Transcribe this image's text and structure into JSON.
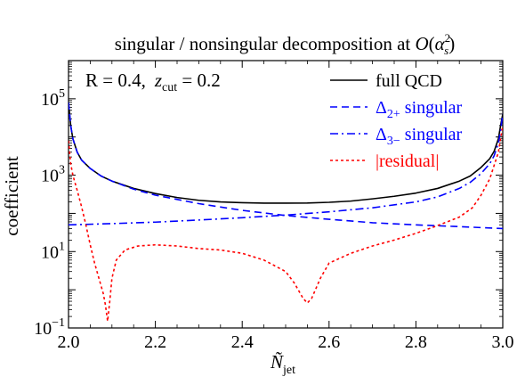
{
  "chart_data": {
    "type": "line",
    "title": {
      "pre": "singular / nonsingular decomposition at ",
      "O": "O",
      "alpha": "α",
      "sup": "2",
      "sub": "s"
    },
    "xlabel": {
      "main": "Ñ",
      "sub": "jet"
    },
    "ylabel": "coefficient",
    "annotation": {
      "r_text": "R = 0.4,",
      "z": "z",
      "z_sub": "cut",
      "z_val": " = 0.2"
    },
    "xlim": [
      2.0,
      3.0
    ],
    "ylim": [
      0.1,
      1000000
    ],
    "yscale": "log",
    "x_ticks": [
      "2.0",
      "2.2",
      "2.4",
      "2.6",
      "2.8",
      "3.0"
    ],
    "y_ticks": [
      {
        "base": "10",
        "exp": "−1"
      },
      {
        "base": "10",
        "exp": "1"
      },
      {
        "base": "10",
        "exp": "3"
      },
      {
        "base": "10",
        "exp": "5"
      }
    ],
    "legend": {
      "placement": "top-right",
      "entries": [
        {
          "label": "full QCD",
          "color": "#000000",
          "dash": "solid"
        },
        {
          "label_pre": "Δ",
          "label_sub": "2+",
          "label_post": " singular",
          "color": "#0000ff",
          "dash": "dashed"
        },
        {
          "label_pre": "Δ",
          "label_sub": "3−",
          "label_post": " singular",
          "color": "#0000ff",
          "dash": "dashdot"
        },
        {
          "label": "|residual|",
          "color": "#ff0000",
          "dash": "dotted"
        }
      ]
    },
    "series": [
      {
        "name": "full QCD",
        "x": [
          2.0,
          2.005,
          2.01,
          2.02,
          2.03,
          2.05,
          2.075,
          2.1,
          2.15,
          2.2,
          2.25,
          2.3,
          2.35,
          2.4,
          2.45,
          2.5,
          2.55,
          2.6,
          2.65,
          2.7,
          2.75,
          2.8,
          2.85,
          2.9,
          2.925,
          2.95,
          2.97,
          2.98,
          2.99,
          2.995,
          3.0
        ],
        "y": [
          80000,
          20000,
          9000,
          4000,
          2500,
          1500,
          950,
          700,
          450,
          330,
          260,
          220,
          200,
          190,
          185,
          185,
          187,
          195,
          210,
          240,
          280,
          340,
          450,
          700,
          950,
          1600,
          2700,
          4200,
          9000,
          20000,
          40000
        ]
      },
      {
        "name": "Δ2+ singular",
        "x": [
          2.0,
          2.005,
          2.01,
          2.02,
          2.03,
          2.05,
          2.075,
          2.1,
          2.15,
          2.2,
          2.3,
          2.4,
          2.5,
          2.6,
          2.7,
          2.8,
          2.9,
          3.0
        ],
        "y": [
          80000,
          20000,
          9000,
          4000,
          2500,
          1500,
          950,
          700,
          430,
          300,
          180,
          120,
          88,
          70,
          57,
          50,
          45,
          40
        ]
      },
      {
        "name": "Δ3− singular",
        "x": [
          2.0,
          2.1,
          2.2,
          2.3,
          2.4,
          2.5,
          2.6,
          2.7,
          2.8,
          2.85,
          2.9,
          2.925,
          2.95,
          2.97,
          2.98,
          2.99,
          2.995,
          3.0
        ],
        "y": [
          50,
          54,
          59,
          67,
          77,
          90,
          110,
          140,
          200,
          270,
          450,
          650,
          1100,
          2000,
          3200,
          7000,
          15000,
          40000
        ]
      },
      {
        "name": "|residual|",
        "x": [
          2.0,
          2.005,
          2.01,
          2.02,
          2.03,
          2.04,
          2.05,
          2.06,
          2.07,
          2.08,
          2.085,
          2.09,
          2.095,
          2.1,
          2.11,
          2.13,
          2.16,
          2.2,
          2.25,
          2.3,
          2.35,
          2.4,
          2.45,
          2.5,
          2.52,
          2.54,
          2.55,
          2.56,
          2.58,
          2.6,
          2.65,
          2.7,
          2.75,
          2.8,
          2.85,
          2.9,
          2.93,
          2.95,
          2.97,
          2.99,
          3.0
        ],
        "y": [
          8000,
          2000,
          1000,
          400,
          150,
          50,
          15,
          5,
          2,
          0.8,
          0.4,
          0.15,
          0.5,
          2,
          6,
          11,
          14,
          15,
          14,
          12,
          11,
          9,
          6,
          3,
          1.5,
          0.6,
          0.45,
          0.6,
          2,
          5,
          9,
          14,
          20,
          30,
          48,
          80,
          140,
          300,
          800,
          4000,
          20000
        ]
      }
    ],
    "grid": false
  }
}
